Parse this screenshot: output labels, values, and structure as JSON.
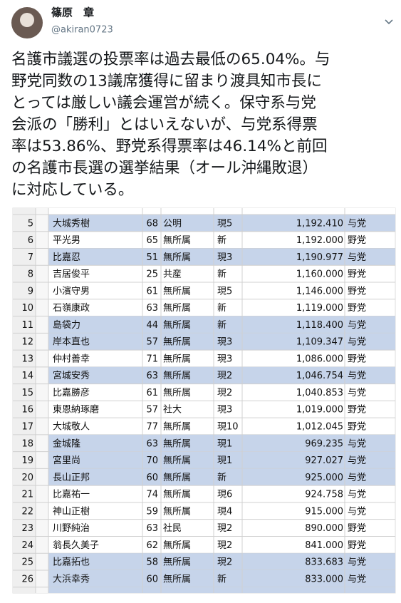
{
  "header": {
    "name": "篠原　章",
    "handle": "@akiran0723"
  },
  "tweet": {
    "lines": [
      "名護市議選の投票率は過去最低の65.04%。与",
      "野党同数の13議席獲得に留まり渡具知市長に",
      "とっては厳しい議会運営が続く。保守系与党",
      "会派の「勝利」とはいえないが、与党系得票",
      "率は53.86%、野党系得票率は46.14%と前回",
      "の名護市長選の選挙結果（オール沖縄敗退）",
      "に対応している。"
    ]
  },
  "table": {
    "rows": [
      [
        "5",
        "大城秀樹",
        "68",
        "公明",
        "現5",
        "1,192.410",
        "与党"
      ],
      [
        "6",
        "平光男",
        "65",
        "無所属",
        "新",
        "1,192.000",
        "野党"
      ],
      [
        "7",
        "比嘉忍",
        "51",
        "無所属",
        "現3",
        "1,190.977",
        "与党"
      ],
      [
        "8",
        "吉居俊平",
        "25",
        "共産",
        "新",
        "1,160.000",
        "野党"
      ],
      [
        "9",
        "小濱守男",
        "61",
        "無所属",
        "現5",
        "1,146.000",
        "野党"
      ],
      [
        "10",
        "石嶺康政",
        "63",
        "無所属",
        "新",
        "1,119.000",
        "野党"
      ],
      [
        "11",
        "島袋力",
        "44",
        "無所属",
        "新",
        "1,118.400",
        "与党"
      ],
      [
        "12",
        "岸本直也",
        "57",
        "無所属",
        "現3",
        "1,109.347",
        "与党"
      ],
      [
        "13",
        "仲村善幸",
        "71",
        "無所属",
        "現3",
        "1,086.000",
        "野党"
      ],
      [
        "14",
        "宮城安秀",
        "63",
        "無所属",
        "現2",
        "1,046.754",
        "与党"
      ],
      [
        "15",
        "比嘉勝彦",
        "61",
        "無所属",
        "現2",
        "1,040.853",
        "与党"
      ],
      [
        "16",
        "東恩納琢磨",
        "57",
        "社大",
        "現3",
        "1,019.000",
        "野党"
      ],
      [
        "17",
        "大城敬人",
        "77",
        "無所属",
        "現10",
        "1,012.045",
        "野党"
      ],
      [
        "18",
        "金城隆",
        "63",
        "無所属",
        "現1",
        "969.235",
        "与党"
      ],
      [
        "19",
        "宮里尚",
        "70",
        "無所属",
        "現1",
        "927.027",
        "与党"
      ],
      [
        "20",
        "長山正邦",
        "60",
        "無所属",
        "新",
        "925.000",
        "与党"
      ],
      [
        "21",
        "比嘉祐一",
        "74",
        "無所属",
        "現6",
        "924.758",
        "与党"
      ],
      [
        "22",
        "神山正樹",
        "59",
        "無所属",
        "現4",
        "915.000",
        "与党"
      ],
      [
        "23",
        "川野純治",
        "63",
        "社民",
        "現2",
        "890.000",
        "野党"
      ],
      [
        "24",
        "翁長久美子",
        "62",
        "無所属",
        "現2",
        "841.000",
        "野党"
      ],
      [
        "25",
        "比嘉拓也",
        "58",
        "無所属",
        "現2",
        "833.683",
        "与党"
      ],
      [
        "26",
        "大浜幸秀",
        "60",
        "無所属",
        "新",
        "833.000",
        "与党"
      ]
    ],
    "row_highlight": [
      true,
      false,
      true,
      false,
      false,
      false,
      true,
      true,
      false,
      true,
      false,
      false,
      false,
      true,
      true,
      true,
      false,
      false,
      false,
      false,
      true,
      true
    ],
    "highlight_color": "#c6d4ea"
  }
}
